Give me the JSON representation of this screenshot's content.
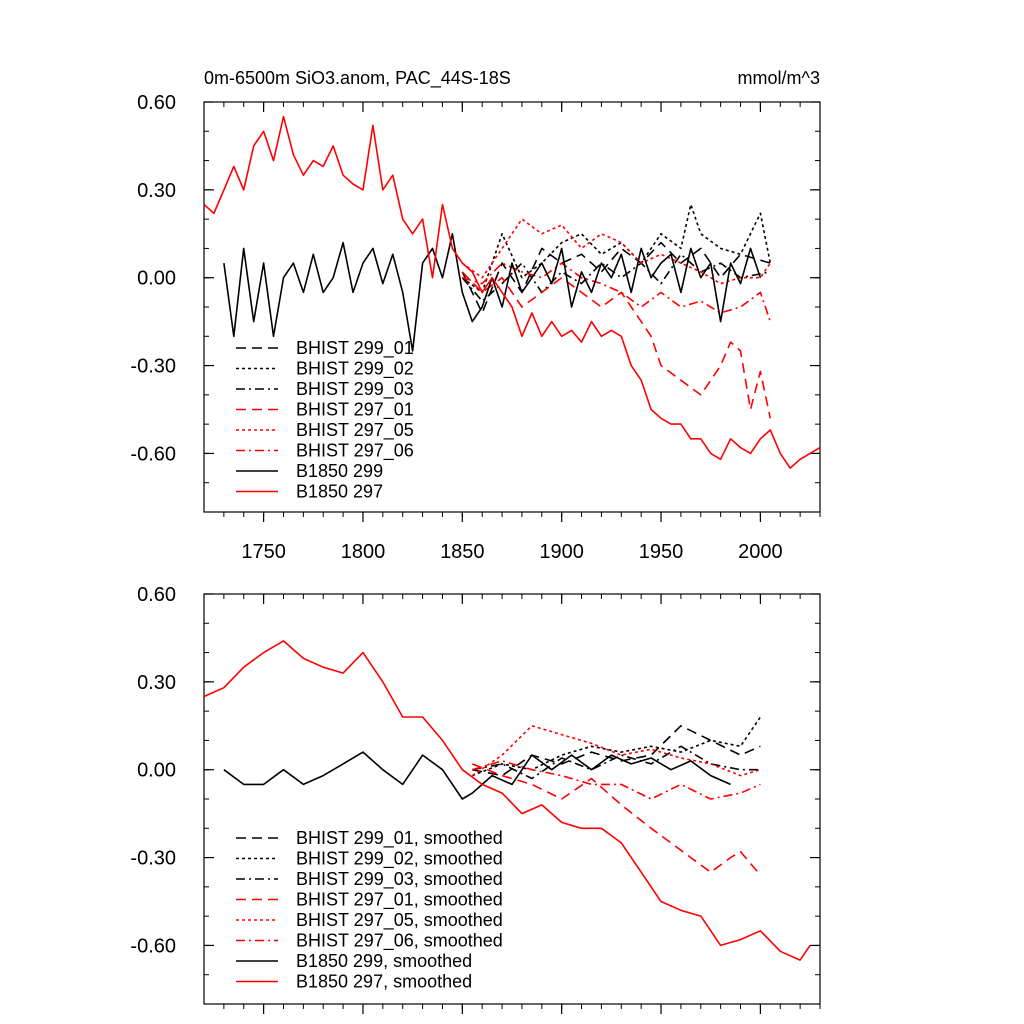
{
  "figure": {
    "title_left": "0m-6500m SiO3.anom, PAC_44S-18S",
    "title_right": "mmol/m^3"
  },
  "colors": {
    "black": "#000000",
    "red": "#ff0000"
  },
  "chart_data": [
    {
      "type": "line",
      "panel": "raw",
      "xlim": [
        1720,
        2030
      ],
      "ylim": [
        -0.8,
        0.6
      ],
      "yticks": [
        0.6,
        0.3,
        0.0,
        -0.3,
        -0.6
      ],
      "ytick_labels": [
        "0.60",
        "0.30",
        "0.00",
        "-0.30",
        "-0.60"
      ],
      "xticks": [
        1750,
        1800,
        1850,
        1900,
        1950,
        2000
      ],
      "xtick_labels": [
        "1750",
        "1800",
        "1850",
        "1900",
        "1950",
        "2000"
      ],
      "series": [
        {
          "name": "BHIST 299_01",
          "color": "black",
          "dash": "dashed",
          "x": [
            1850,
            1860,
            1870,
            1880,
            1890,
            1900,
            1910,
            1920,
            1930,
            1940,
            1950,
            1960,
            1970,
            1980,
            1990,
            2005
          ],
          "y": [
            0.02,
            -0.12,
            0.05,
            -0.05,
            0.1,
            0.05,
            0.08,
            0.02,
            0.1,
            0.05,
            0.12,
            0.05,
            0.1,
            0.0,
            0.08,
            0.05
          ]
        },
        {
          "name": "BHIST 299_02",
          "color": "black",
          "dash": "dotted",
          "x": [
            1850,
            1860,
            1870,
            1880,
            1890,
            1900,
            1910,
            1920,
            1930,
            1940,
            1950,
            1960,
            1965,
            1970,
            1980,
            1990,
            2000,
            2005
          ],
          "y": [
            0.0,
            -0.05,
            0.15,
            0.0,
            0.05,
            0.12,
            0.15,
            0.08,
            0.12,
            0.05,
            0.15,
            0.1,
            0.25,
            0.15,
            0.1,
            0.08,
            0.22,
            0.05
          ]
        },
        {
          "name": "BHIST 299_03",
          "color": "black",
          "dash": "dashdot",
          "x": [
            1850,
            1860,
            1870,
            1880,
            1890,
            1900,
            1910,
            1920,
            1930,
            1940,
            1950,
            1960,
            1970,
            1980,
            1990,
            2005
          ],
          "y": [
            0.0,
            -0.08,
            -0.02,
            0.05,
            -0.05,
            0.02,
            -0.02,
            0.05,
            0.0,
            0.05,
            -0.02,
            0.08,
            0.02,
            0.05,
            0.0,
            0.02
          ]
        },
        {
          "name": "BHIST 297_01",
          "color": "red",
          "dash": "dashed",
          "x": [
            1850,
            1860,
            1870,
            1880,
            1890,
            1900,
            1910,
            1920,
            1930,
            1940,
            1945,
            1950,
            1960,
            1970,
            1980,
            1985,
            1990,
            1995,
            2000,
            2005
          ],
          "y": [
            0.02,
            -0.05,
            0.0,
            -0.1,
            -0.05,
            0.0,
            -0.05,
            -0.1,
            -0.05,
            -0.15,
            -0.2,
            -0.3,
            -0.35,
            -0.4,
            -0.3,
            -0.22,
            -0.25,
            -0.45,
            -0.32,
            -0.48
          ]
        },
        {
          "name": "BHIST 297_05",
          "color": "red",
          "dash": "dotted",
          "x": [
            1850,
            1860,
            1870,
            1880,
            1890,
            1900,
            1910,
            1920,
            1930,
            1940,
            1950,
            1960,
            1970,
            1980,
            1990,
            2000,
            2005
          ],
          "y": [
            0.05,
            0.0,
            0.1,
            0.2,
            0.15,
            0.18,
            0.1,
            0.15,
            0.12,
            0.05,
            0.08,
            0.05,
            0.02,
            -0.02,
            0.0,
            0.0,
            0.05
          ]
        },
        {
          "name": "BHIST 297_06",
          "color": "red",
          "dash": "dashdot",
          "x": [
            1850,
            1860,
            1870,
            1880,
            1890,
            1900,
            1910,
            1920,
            1930,
            1940,
            1950,
            1960,
            1970,
            1980,
            1990,
            2000,
            2005
          ],
          "y": [
            0.0,
            -0.02,
            0.05,
            0.02,
            0.0,
            0.05,
            0.0,
            -0.02,
            -0.05,
            -0.1,
            -0.05,
            -0.1,
            -0.08,
            -0.12,
            -0.1,
            -0.05,
            -0.15
          ]
        },
        {
          "name": "B1850 299",
          "color": "black",
          "dash": "solid",
          "x": [
            1730,
            1735,
            1740,
            1745,
            1750,
            1755,
            1760,
            1765,
            1770,
            1775,
            1780,
            1785,
            1790,
            1795,
            1800,
            1805,
            1810,
            1815,
            1820,
            1825,
            1830,
            1835,
            1840,
            1845,
            1850,
            1855,
            1860,
            1865,
            1870,
            1875,
            1880,
            1885,
            1890,
            1895,
            1900,
            1905,
            1910,
            1915,
            1920,
            1925,
            1930,
            1935,
            1940,
            1945,
            1950,
            1955,
            1960,
            1965,
            1970,
            1975,
            1980,
            1985,
            1990,
            1995,
            2000
          ],
          "y": [
            0.05,
            -0.2,
            0.1,
            -0.15,
            0.05,
            -0.2,
            0.0,
            0.05,
            -0.05,
            0.08,
            -0.05,
            0.0,
            0.12,
            -0.05,
            0.05,
            0.1,
            -0.02,
            0.08,
            -0.05,
            -0.25,
            0.05,
            0.1,
            0.0,
            0.15,
            -0.05,
            -0.15,
            -0.1,
            0.0,
            -0.1,
            0.05,
            -0.05,
            0.0,
            0.05,
            -0.02,
            0.1,
            -0.1,
            0.02,
            -0.05,
            0.05,
            0.0,
            0.08,
            -0.05,
            0.1,
            0.0,
            0.05,
            0.08,
            -0.05,
            0.1,
            0.0,
            0.05,
            -0.15,
            0.05,
            -0.02,
            0.1,
            0.0
          ]
        },
        {
          "name": "B1850 297",
          "color": "red",
          "dash": "solid",
          "x": [
            1720,
            1725,
            1730,
            1735,
            1740,
            1745,
            1750,
            1755,
            1760,
            1765,
            1770,
            1775,
            1780,
            1785,
            1790,
            1795,
            1800,
            1805,
            1810,
            1815,
            1820,
            1825,
            1830,
            1835,
            1840,
            1845,
            1850,
            1855,
            1860,
            1865,
            1870,
            1875,
            1880,
            1885,
            1890,
            1895,
            1900,
            1905,
            1910,
            1915,
            1920,
            1925,
            1930,
            1935,
            1940,
            1945,
            1950,
            1955,
            1960,
            1965,
            1970,
            1975,
            1980,
            1985,
            1990,
            1995,
            2000,
            2005,
            2010,
            2015,
            2020,
            2025,
            2030
          ],
          "y": [
            0.25,
            0.22,
            0.3,
            0.38,
            0.3,
            0.45,
            0.5,
            0.4,
            0.55,
            0.42,
            0.35,
            0.4,
            0.38,
            0.45,
            0.35,
            0.32,
            0.3,
            0.52,
            0.3,
            0.35,
            0.2,
            0.15,
            0.2,
            0.0,
            0.25,
            0.1,
            0.05,
            0.02,
            -0.05,
            0.0,
            -0.05,
            -0.1,
            -0.2,
            -0.12,
            -0.2,
            -0.15,
            -0.2,
            -0.18,
            -0.22,
            -0.15,
            -0.2,
            -0.18,
            -0.2,
            -0.3,
            -0.35,
            -0.45,
            -0.48,
            -0.5,
            -0.5,
            -0.55,
            -0.55,
            -0.6,
            -0.62,
            -0.55,
            -0.58,
            -0.6,
            -0.55,
            -0.52,
            -0.6,
            -0.65,
            -0.62,
            -0.6,
            -0.58
          ]
        }
      ],
      "legend": [
        "BHIST 299_01",
        "BHIST 299_02",
        "BHIST 299_03",
        "BHIST 297_01",
        "BHIST 297_05",
        "BHIST 297_06",
        "B1850 299",
        "B1850 297"
      ]
    },
    {
      "type": "line",
      "panel": "smoothed",
      "xlim": [
        1720,
        2030
      ],
      "ylim": [
        -0.8,
        0.6
      ],
      "yticks": [
        0.6,
        0.3,
        0.0,
        -0.3,
        -0.6
      ],
      "ytick_labels": [
        "0.60",
        "0.30",
        "0.00",
        "-0.30",
        "-0.60"
      ],
      "xticks": [
        1750,
        1800,
        1850,
        1900,
        1950,
        2000
      ],
      "series": [
        {
          "name": "BHIST 299_01, smoothed",
          "color": "black",
          "dash": "dashed",
          "x": [
            1855,
            1870,
            1885,
            1900,
            1915,
            1930,
            1945,
            1960,
            1975,
            1990,
            2000
          ],
          "y": [
            0.0,
            -0.02,
            0.05,
            0.02,
            0.06,
            0.03,
            0.05,
            0.15,
            0.1,
            0.05,
            0.08
          ]
        },
        {
          "name": "BHIST 299_02, smoothed",
          "color": "black",
          "dash": "dotted",
          "x": [
            1855,
            1870,
            1885,
            1900,
            1915,
            1930,
            1945,
            1960,
            1975,
            1990,
            2000
          ],
          "y": [
            -0.02,
            0.02,
            0.0,
            0.05,
            0.08,
            0.06,
            0.08,
            0.06,
            0.1,
            0.08,
            0.18
          ]
        },
        {
          "name": "BHIST 299_03, smoothed",
          "color": "black",
          "dash": "dashdot",
          "x": [
            1855,
            1870,
            1885,
            1900,
            1915,
            1930,
            1945,
            1960,
            1975,
            1990,
            2000
          ],
          "y": [
            0.0,
            0.02,
            -0.03,
            0.04,
            0.0,
            0.05,
            0.02,
            0.08,
            0.02,
            0.0,
            0.0
          ]
        },
        {
          "name": "BHIST 297_01, smoothed",
          "color": "red",
          "dash": "dashed",
          "x": [
            1855,
            1870,
            1885,
            1900,
            1915,
            1930,
            1945,
            1955,
            1965,
            1975,
            1985,
            1990,
            2000
          ],
          "y": [
            0.02,
            -0.02,
            -0.05,
            -0.1,
            -0.03,
            -0.12,
            -0.2,
            -0.25,
            -0.3,
            -0.35,
            -0.3,
            -0.28,
            -0.36
          ]
        },
        {
          "name": "BHIST 297_05, smoothed",
          "color": "red",
          "dash": "dotted",
          "x": [
            1855,
            1870,
            1885,
            1900,
            1915,
            1930,
            1945,
            1960,
            1975,
            1990,
            2000
          ],
          "y": [
            -0.02,
            0.05,
            0.15,
            0.12,
            0.09,
            0.05,
            0.07,
            0.04,
            0.02,
            -0.02,
            0.0
          ]
        },
        {
          "name": "BHIST 297_06, smoothed",
          "color": "red",
          "dash": "dashdot",
          "x": [
            1855,
            1870,
            1885,
            1900,
            1915,
            1930,
            1945,
            1960,
            1975,
            1990,
            2000
          ],
          "y": [
            0.0,
            0.03,
            0.0,
            -0.02,
            -0.05,
            -0.05,
            -0.1,
            -0.05,
            -0.1,
            -0.08,
            -0.05
          ]
        },
        {
          "name": "B1850 299, smoothed",
          "color": "black",
          "dash": "solid",
          "x": [
            1730,
            1740,
            1750,
            1760,
            1770,
            1780,
            1790,
            1800,
            1810,
            1820,
            1830,
            1840,
            1850,
            1855,
            1865,
            1875,
            1885,
            1895,
            1905,
            1915,
            1925,
            1935,
            1945,
            1955,
            1965,
            1975,
            1985
          ],
          "y": [
            0.0,
            -0.05,
            -0.05,
            0.0,
            -0.05,
            -0.02,
            0.02,
            0.06,
            0.0,
            -0.05,
            0.05,
            0.0,
            -0.1,
            -0.08,
            -0.02,
            -0.05,
            0.05,
            0.0,
            0.05,
            0.0,
            0.05,
            0.02,
            0.04,
            0.0,
            0.03,
            -0.02,
            -0.05
          ]
        },
        {
          "name": "B1850 297, smoothed",
          "color": "red",
          "dash": "solid",
          "x": [
            1720,
            1730,
            1740,
            1750,
            1760,
            1770,
            1780,
            1790,
            1800,
            1810,
            1820,
            1830,
            1840,
            1850,
            1860,
            1870,
            1880,
            1890,
            1900,
            1910,
            1920,
            1930,
            1940,
            1950,
            1960,
            1970,
            1980,
            1990,
            2000,
            2010,
            2020,
            2025
          ],
          "y": [
            0.25,
            0.28,
            0.35,
            0.4,
            0.44,
            0.38,
            0.35,
            0.33,
            0.4,
            0.3,
            0.18,
            0.18,
            0.1,
            0.0,
            -0.05,
            -0.08,
            -0.15,
            -0.12,
            -0.18,
            -0.2,
            -0.2,
            -0.25,
            -0.35,
            -0.45,
            -0.48,
            -0.5,
            -0.6,
            -0.58,
            -0.55,
            -0.62,
            -0.65,
            -0.6
          ]
        }
      ],
      "legend": [
        "BHIST 299_01, smoothed",
        "BHIST 299_02, smoothed",
        "BHIST 299_03, smoothed",
        "BHIST 297_01, smoothed",
        "BHIST 297_05, smoothed",
        "BHIST 297_06, smoothed",
        "B1850 299, smoothed",
        "B1850 297, smoothed"
      ]
    }
  ]
}
